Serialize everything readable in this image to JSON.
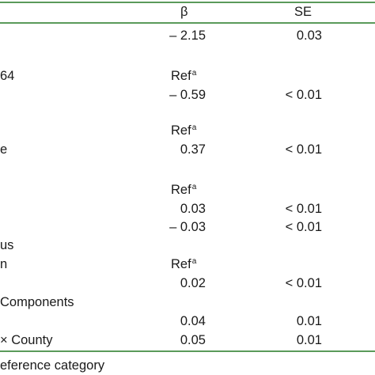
{
  "header": {
    "beta": "β",
    "se": "SE"
  },
  "rows": [
    {
      "label": "",
      "beta": "– 2.15",
      "se": "0.03"
    },
    {
      "label": "64",
      "beta": "",
      "se": ""
    },
    {
      "label": "",
      "beta": "– 0.59",
      "se": "< 0.01"
    },
    {
      "label": "e",
      "beta": "0.37",
      "se": "< 0.01"
    },
    {
      "label": "",
      "beta": "0.03",
      "se": "< 0.01"
    },
    {
      "label": "",
      "beta": "– 0.03",
      "se": "< 0.01"
    },
    {
      "label": "us",
      "beta": "",
      "se": ""
    },
    {
      "label": "n",
      "beta": "",
      "se": ""
    },
    {
      "label": "",
      "beta": "0.02",
      "se": "< 0.01"
    },
    {
      "label": "Components",
      "beta": "",
      "se": ""
    },
    {
      "label": "",
      "beta": "0.04",
      "se": "0.01"
    },
    {
      "label": "× County",
      "beta": "0.05",
      "se": "0.01"
    }
  ],
  "ref_label": "Ref",
  "ref_sup": "a",
  "footnote": "eference category"
}
